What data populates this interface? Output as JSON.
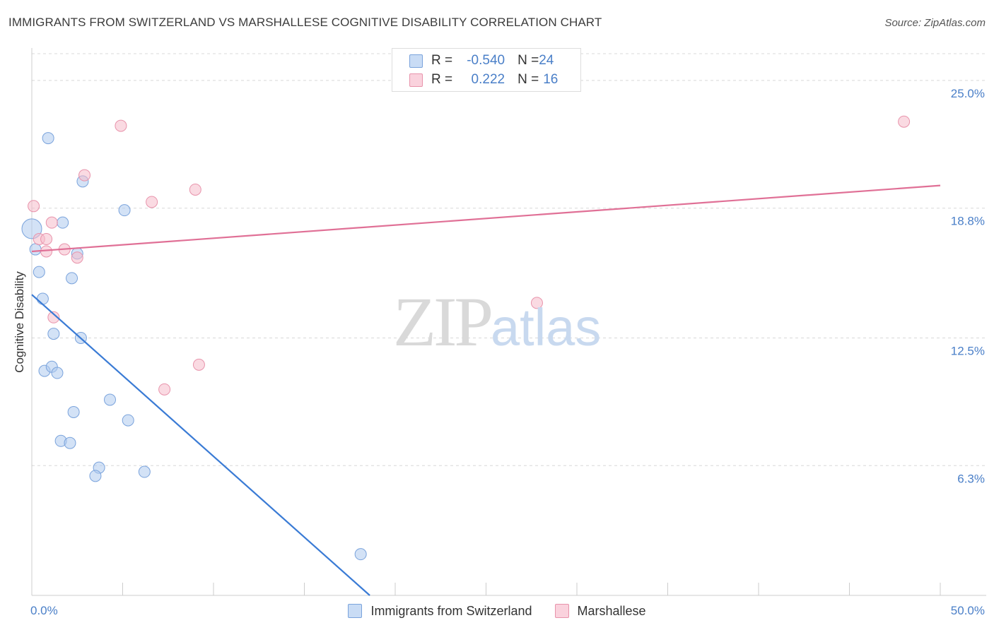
{
  "title": "IMMIGRANTS FROM SWITZERLAND VS MARSHALLESE COGNITIVE DISABILITY CORRELATION CHART",
  "source": "Source: ZipAtlas.com",
  "watermark": {
    "zip": "ZIP",
    "atlas": "atlas"
  },
  "legend_top": {
    "rows": [
      {
        "r_label": "R = ",
        "r_value": "-0.540",
        "n_label": "N = ",
        "n_value": "24"
      },
      {
        "r_label": "R = ",
        "r_value": " 0.222",
        "n_label": "N = ",
        "n_value": "16"
      }
    ]
  },
  "colors": {
    "blue_fill": "#aecbef",
    "blue_stroke": "#7aa3dc",
    "blue_line": "#3a7bd5",
    "pink_fill": "#f5bccb",
    "pink_stroke": "#e893ab",
    "pink_line": "#e07096",
    "axis_label": "#4a7fc8",
    "grid": "#d8d8d8"
  },
  "chart_data": {
    "type": "scatter",
    "title": "IMMIGRANTS FROM SWITZERLAND VS MARSHALLESE COGNITIVE DISABILITY CORRELATION CHART",
    "xlabel": "",
    "ylabel": "Cognitive Disability",
    "xlim": [
      0,
      50
    ],
    "ylim": [
      0,
      26.3
    ],
    "x_tick_labels": [
      "0.0%",
      "50.0%"
    ],
    "y_ticks": [
      6.3,
      12.5,
      18.8,
      25.0
    ],
    "y_tick_labels": [
      "6.3%",
      "12.5%",
      "18.8%",
      "25.0%"
    ],
    "grid": true,
    "legend_position": "top-center",
    "series": [
      {
        "name": "Immigrants from Switzerland",
        "color": "blue",
        "r": -0.54,
        "n": 24,
        "points": [
          [
            0.0,
            17.8,
            14
          ],
          [
            0.9,
            22.2,
            8
          ],
          [
            2.8,
            20.1,
            8
          ],
          [
            1.7,
            18.1,
            8
          ],
          [
            5.1,
            18.7,
            8
          ],
          [
            0.2,
            16.8,
            8
          ],
          [
            0.4,
            15.7,
            8
          ],
          [
            2.5,
            16.6,
            8
          ],
          [
            2.2,
            15.4,
            8
          ],
          [
            0.6,
            14.4,
            8
          ],
          [
            1.2,
            12.7,
            8
          ],
          [
            2.7,
            12.5,
            8
          ],
          [
            0.7,
            10.9,
            8
          ],
          [
            1.1,
            11.1,
            8
          ],
          [
            1.4,
            10.8,
            8
          ],
          [
            4.3,
            9.5,
            8
          ],
          [
            2.3,
            8.9,
            8
          ],
          [
            5.3,
            8.5,
            8
          ],
          [
            1.6,
            7.5,
            8
          ],
          [
            2.1,
            7.4,
            8
          ],
          [
            3.7,
            6.2,
            8
          ],
          [
            3.5,
            5.8,
            8
          ],
          [
            6.2,
            6.0,
            8
          ],
          [
            18.1,
            2.0,
            8
          ]
        ],
        "trend": {
          "x": [
            0.0,
            18.6
          ],
          "y": [
            14.6,
            0.0
          ]
        }
      },
      {
        "name": "Marshallese",
        "color": "pink",
        "r": 0.222,
        "n": 16,
        "points": [
          [
            0.1,
            18.9,
            8
          ],
          [
            4.9,
            22.8,
            8
          ],
          [
            2.9,
            20.4,
            8
          ],
          [
            6.6,
            19.1,
            8
          ],
          [
            9.0,
            19.7,
            8
          ],
          [
            1.1,
            18.1,
            8
          ],
          [
            0.4,
            17.3,
            8
          ],
          [
            0.8,
            17.3,
            8
          ],
          [
            0.8,
            16.7,
            8
          ],
          [
            1.8,
            16.8,
            8
          ],
          [
            2.5,
            16.4,
            8
          ],
          [
            1.2,
            13.5,
            8
          ],
          [
            27.8,
            14.2,
            8
          ],
          [
            9.2,
            11.2,
            8
          ],
          [
            7.3,
            10.0,
            8
          ],
          [
            48.0,
            23.0,
            8
          ]
        ],
        "trend": {
          "x": [
            0.0,
            50.0
          ],
          "y": [
            16.7,
            19.9
          ]
        }
      }
    ]
  }
}
